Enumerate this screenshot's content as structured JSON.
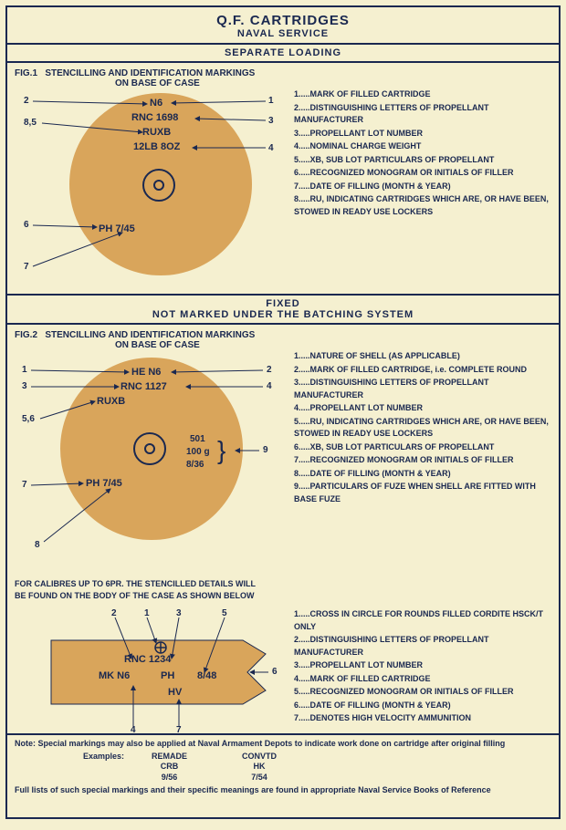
{
  "colors": {
    "paper": "#f5f0d0",
    "ink": "#1a2850",
    "brass": "#d9a55b"
  },
  "header": {
    "title": "Q.F. CARTRIDGES",
    "subtitle": "NAVAL SERVICE"
  },
  "section1": {
    "bar": "SEPARATE LOADING",
    "fig_label": "FIG.1",
    "fig_title1": "STENCILLING AND IDENTIFICATION MARKINGS",
    "fig_title2": "ON BASE OF CASE",
    "case_text": {
      "line1": "N6",
      "line2": "RNC 1698",
      "line3": "RUXB",
      "line4": "12LB 8OZ",
      "line5": "PH 7/45"
    },
    "pointers": [
      "1",
      "2",
      "3",
      "4",
      "5",
      "6",
      "7",
      "8,5"
    ],
    "legend": [
      {
        "n": "1",
        "t": "MARK OF FILLED CARTRIDGE"
      },
      {
        "n": "2",
        "t": "DISTINGUISHING LETTERS OF PROPELLANT MANUFACTURER"
      },
      {
        "n": "3",
        "t": "PROPELLANT LOT NUMBER"
      },
      {
        "n": "4",
        "t": "NOMINAL CHARGE WEIGHT"
      },
      {
        "n": "5",
        "t": "XB, SUB LOT PARTICULARS OF PROPELLANT"
      },
      {
        "n": "6",
        "t": "RECOGNIZED MONOGRAM OR INITIALS OF FILLER"
      },
      {
        "n": "7",
        "t": "DATE OF FILLING (MONTH & YEAR)"
      },
      {
        "n": "8",
        "t": "RU, INDICATING CARTRIDGES WHICH ARE, OR HAVE BEEN, STOWED IN READY USE LOCKERS"
      }
    ]
  },
  "section2": {
    "bar1": "FIXED",
    "bar2": "NOT MARKED UNDER THE BATCHING SYSTEM",
    "fig_label": "FIG.2",
    "fig_title1": "STENCILLING AND IDENTIFICATION MARKINGS",
    "fig_title2": "ON BASE OF CASE",
    "case_text": {
      "line1": "HE N6",
      "line2": "RNC  1127",
      "line3": "RUXB",
      "line4a": "501",
      "line4b": "100 g",
      "line4c": "8/36",
      "line5": "PH 7/45"
    },
    "pointers": [
      "1",
      "2",
      "3",
      "4",
      "5,6",
      "7",
      "8",
      "9"
    ],
    "legend": [
      {
        "n": "1",
        "t": "NATURE OF SHELL (AS APPLICABLE)"
      },
      {
        "n": "2",
        "t": "MARK OF FILLED CARTRIDGE, i.e. COMPLETE ROUND"
      },
      {
        "n": "3",
        "t": "DISTINGUISHING LETTERS OF PROPELLANT MANUFACTURER"
      },
      {
        "n": "4",
        "t": "PROPELLANT LOT NUMBER"
      },
      {
        "n": "5",
        "t": "RU, INDICATING CARTRIDGES WHICH ARE, OR HAVE BEEN, STOWED IN READY USE LOCKERS"
      },
      {
        "n": "6",
        "t": "XB, SUB LOT PARTICULARS OF PROPELLANT"
      },
      {
        "n": "7",
        "t": "RECOGNIZED MONOGRAM OR INITIALS OF FILLER"
      },
      {
        "n": "8",
        "t": "DATE OF FILLING (MONTH & YEAR)"
      },
      {
        "n": "9",
        "t": "PARTICULARS OF FUZE WHEN SHELL ARE FITTED WITH BASE FUZE"
      }
    ]
  },
  "section3": {
    "caption1": "FOR CALIBRES UP TO 6PR. THE STENCILLED DETAILS WILL",
    "caption2": "BE FOUND ON THE BODY OF THE CASE AS SHOWN BELOW",
    "case_text": {
      "top": "RNC 1234",
      "mk": "MK N6",
      "ph": "PH",
      "date": "8/48",
      "hv": "HV"
    },
    "pointers": [
      "1",
      "2",
      "3",
      "4",
      "5",
      "6",
      "7"
    ],
    "legend": [
      {
        "n": "1",
        "t": "CROSS IN CIRCLE FOR ROUNDS FILLED CORDITE HSCK/T ONLY"
      },
      {
        "n": "2",
        "t": "DISTINGUISHING LETTERS OF PROPELLANT MANUFACTURER"
      },
      {
        "n": "3",
        "t": "PROPELLANT LOT NUMBER"
      },
      {
        "n": "4",
        "t": "MARK OF FILLED CARTRIDGE"
      },
      {
        "n": "5",
        "t": "RECOGNIZED MONOGRAM OR INITIALS OF FILLER"
      },
      {
        "n": "6",
        "t": "DATE OF FILLING (MONTH & YEAR)"
      },
      {
        "n": "7",
        "t": "DENOTES HIGH VELOCITY AMMUNITION"
      }
    ]
  },
  "note": {
    "line1": "Note: Special markings may also be applied at Naval Armament Depots to indicate work done on cartridge after original filling",
    "examples_label": "Examples:",
    "ex1_h": "REMADE",
    "ex1_a": "CRB",
    "ex1_b": "9/56",
    "ex2_h": "CONVTD",
    "ex2_a": "HK",
    "ex2_b": "7/54",
    "line2": "Full lists of such special markings and their specific meanings are found in appropriate Naval Service Books of Reference"
  }
}
